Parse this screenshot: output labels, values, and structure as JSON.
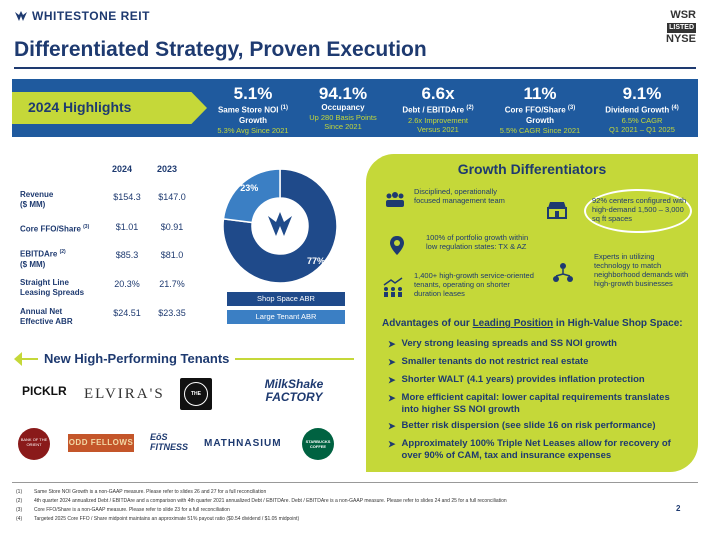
{
  "header": {
    "logo_text": "WHITESTONE REIT",
    "listing": {
      "ticker": "WSR",
      "listed": "LISTED",
      "exchange": "NYSE"
    },
    "title": "Differentiated Strategy, Proven Execution"
  },
  "highlights": {
    "label": "2024 Highlights",
    "metrics": [
      {
        "value": "5.1%",
        "label": "Same Store NOI",
        "label2": "Growth",
        "note": "(1)",
        "sub1": "5.3% Avg Since 2021",
        "sub2": ""
      },
      {
        "value": "94.1%",
        "label": "Occupancy",
        "label2": "",
        "note": "",
        "sub1": "Up 280 Basis Points",
        "sub2": "Since 2021"
      },
      {
        "value": "6.6x",
        "label": "Debt / EBITDAre",
        "label2": "",
        "note": "(2)",
        "sub1": "2.6x Improvement",
        "sub2": "Versus 2021"
      },
      {
        "value": "11%",
        "label": "Core FFO/Share",
        "label2": "Growth",
        "note": "(3)",
        "sub1": "5.5% CAGR Since 2021",
        "sub2": ""
      },
      {
        "value": "9.1%",
        "label": "Dividend Growth",
        "label2": "",
        "note": "(4)",
        "sub1": "6.5% CAGR",
        "sub2": "Q1 2021 – Q1 2025"
      }
    ]
  },
  "financials": {
    "col_2024": "2024",
    "col_2023": "2023",
    "rows": [
      {
        "label": "Revenue",
        "note": "",
        "label2": "($ MM)",
        "v2024": "$154.3",
        "v2023": "$147.0"
      },
      {
        "label": "Core FFO/Share",
        "note": "(3)",
        "label2": "",
        "v2024": "$1.01",
        "v2023": "$0.91"
      },
      {
        "label": "EBITDAre",
        "note": "(2)",
        "label2": "($ MM)",
        "v2024": "$85.3",
        "v2023": "$81.0"
      },
      {
        "label": "Straight Line",
        "note": "",
        "label2": "Leasing Spreads",
        "v2024": "20.3%",
        "v2023": "21.7%"
      },
      {
        "label": "Annual Net",
        "note": "",
        "label2": "Effective ABR",
        "v2024": "$24.51",
        "v2023": "$23.35"
      }
    ]
  },
  "chart_data": {
    "type": "pie",
    "categories": [
      "Shop Space ABR",
      "Large Tenant ABR"
    ],
    "values": [
      77,
      23
    ],
    "labels": [
      "77%",
      "23%"
    ],
    "colors": [
      "#1f4a8a",
      "#3b7fc4"
    ]
  },
  "tenants": {
    "title": "New High-Performing Tenants",
    "row1": [
      "PICKLR",
      "ELVIRA'S",
      "THE TOBE",
      "MilkShake FACTORY"
    ],
    "row2": [
      "BANK OF THE ORIENT",
      "ODD FELLOWS",
      "EōS FITNESS",
      "MATHNASIUM",
      "STARBUCKS COFFEE"
    ]
  },
  "growth": {
    "title": "Growth Differentiators",
    "items": [
      {
        "icon": "team-icon",
        "text": "Disciplined, operationally focused management team"
      },
      {
        "icon": "storefront-icon",
        "text": "92% centers configured with high-demand 1,500 – 3,000 sq ft spaces"
      },
      {
        "icon": "map-pin-icon",
        "text": "100% of portfolio growth within low regulation states: TX & AZ"
      },
      {
        "icon": "network-icon",
        "text": "Experts in utilizing technology to match neighborhood demands with high-growth businesses"
      },
      {
        "icon": "growth-people-icon",
        "text": "1,400+ high-growth service-oriented tenants, operating on shorter duration leases"
      }
    ],
    "advantages_prefix": "Advantages of our ",
    "advantages_emph": "Leading Position",
    "advantages_suffix": " in High-Value Shop Space:",
    "bullets": [
      "Very strong leasing spreads and SS NOI growth",
      "Smaller tenants do not restrict real estate",
      "Shorter WALT (4.1 years) provides inflation protection",
      "More efficient capital: lower capital requirements translates into higher SS NOI growth",
      "Better risk dispersion (see slide 16 on risk performance)",
      "Approximately 100% Triple Net Leases allow for recovery of over 90% of CAM, tax and insurance expenses"
    ]
  },
  "footnotes": [
    {
      "num": "(1)",
      "text": "Same Store NOI Growth is a non-GAAP measure. Please refer to slides 26 and 27 for a full reconciliation"
    },
    {
      "num": "(2)",
      "text": "4th quarter 2024 annualized Debt / EBITDAre and a comparison with 4th quarter 2021 annualized Debt / EBITDAre. Debt / EBITDAre is a non-GAAP measure. Please refer to slides 24 and 25 for a full reconciliation"
    },
    {
      "num": "(3)",
      "text": "Core FFO/Share is a non-GAAP measure. Please refer to slide 23 for a full reconciliation"
    },
    {
      "num": "(4)",
      "text": "Targeted 2025 Core FFO / Share midpoint maintains an approximate 51% payout ratio ($0.54 dividend / $1.05 midpoint)"
    }
  ],
  "page_number": "2"
}
